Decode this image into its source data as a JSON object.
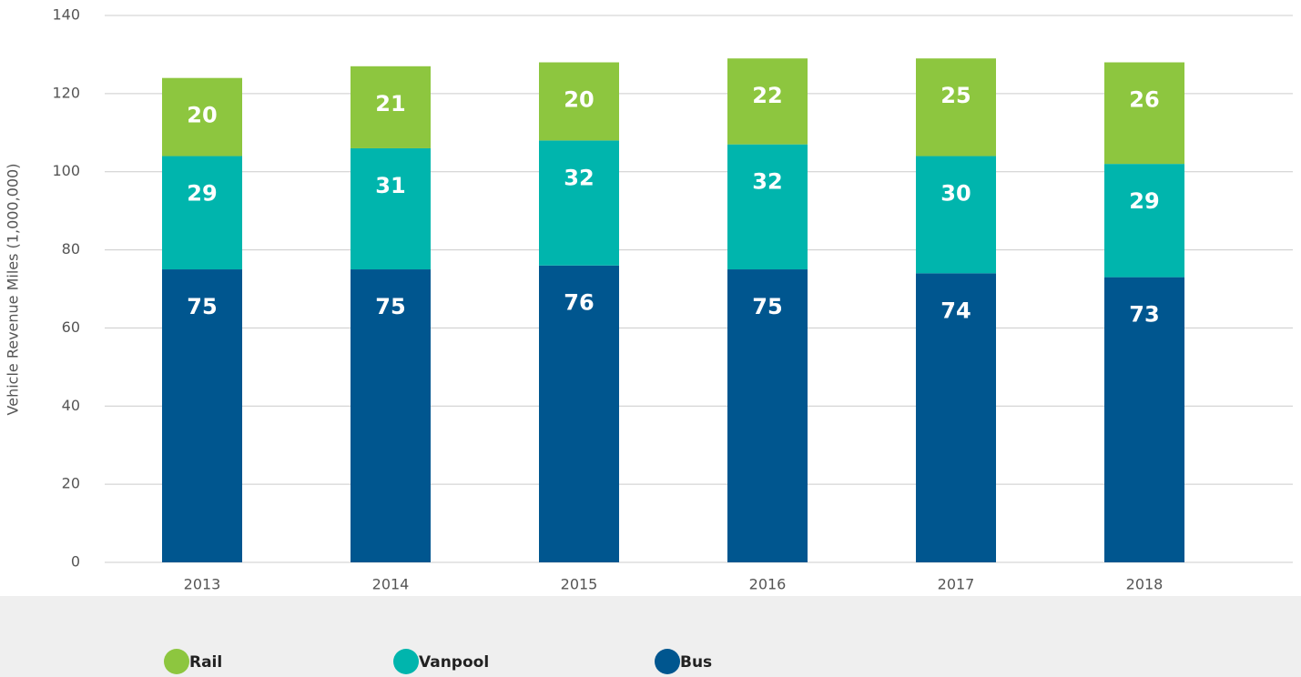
{
  "chart_data": {
    "type": "stacked_bar",
    "y_label": "Vehicle Revenue Miles (1,000,000)",
    "categories": [
      "2013",
      "2014",
      "2015",
      "2016",
      "2017",
      "2018"
    ],
    "series": [
      {
        "name": "Bus",
        "color": "#00568f",
        "values": [
          75,
          75,
          76,
          75,
          74,
          73
        ]
      },
      {
        "name": "Vanpool",
        "color": "#00b5ad",
        "values": [
          29,
          31,
          32,
          32,
          30,
          29
        ]
      },
      {
        "name": "Rail",
        "color": "#8dc63f",
        "values": [
          20,
          21,
          20,
          22,
          25,
          26
        ]
      }
    ],
    "ylim": [
      0,
      140
    ],
    "yticks": [
      0,
      20,
      40,
      60,
      80,
      100,
      120,
      140
    ],
    "grid": true,
    "legend": "bottom"
  }
}
